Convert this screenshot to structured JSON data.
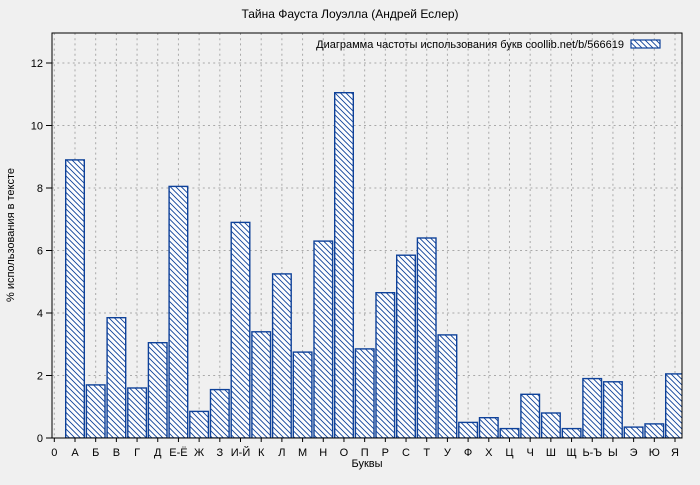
{
  "chart_data": {
    "type": "bar",
    "title": "Тайна Фауста Лоуэлла (Андрей Еслер)",
    "legend": "Диаграмма частоты использования букв coollib.net/b/566619",
    "legend_position": "top-right-inside",
    "xlabel": "Буквы",
    "ylabel": "% использования в тексте",
    "x_origin_tick_label": "0",
    "categories": [
      "А",
      "Б",
      "В",
      "Г",
      "Д",
      "Е-Ё",
      "Ж",
      "З",
      "И-Й",
      "К",
      "Л",
      "М",
      "Н",
      "О",
      "П",
      "Р",
      "С",
      "Т",
      "У",
      "Ф",
      "Х",
      "Ц",
      "Ч",
      "Ш",
      "Щ",
      "Ь-Ъ",
      "Ы",
      "Э",
      "Ю",
      "Я"
    ],
    "values": [
      8.9,
      1.7,
      3.85,
      1.6,
      3.05,
      8.05,
      0.85,
      1.55,
      6.9,
      3.4,
      5.25,
      2.75,
      6.3,
      11.05,
      2.85,
      4.65,
      5.85,
      6.4,
      3.3,
      0.5,
      0.65,
      0.3,
      1.4,
      0.8,
      0.3,
      1.9,
      1.8,
      0.35,
      0.45,
      2.05
    ],
    "yticks": [
      0,
      2,
      4,
      6,
      8,
      10,
      12
    ],
    "ylim": [
      0,
      12.96
    ],
    "grid": true,
    "bar_style": "blue diagonal hatch on white fill"
  },
  "colors": {
    "bar": "#0e4199",
    "grid": "#a9a9a9",
    "background": "#f0f0f0",
    "text": "#000000"
  }
}
